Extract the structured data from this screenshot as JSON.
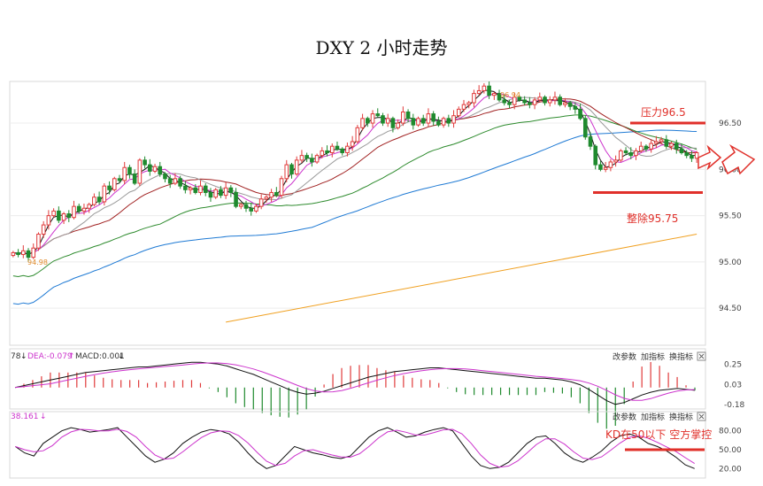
{
  "page": {
    "title": "DXY 2 小时走势"
  },
  "chart_data": [
    {
      "type": "candlestick",
      "price_labels": {
        "low": "94.98",
        "high": "96.94"
      },
      "y_ticks": [
        "96.50",
        "96.00",
        "95.50",
        "95.00",
        "94.50"
      ],
      "ylim": [
        94.1,
        96.95
      ],
      "annotations": {
        "resistance": "压力96.5",
        "support": "整除95.75"
      },
      "levels": {
        "resistance": 96.5,
        "support": 95.75
      },
      "colors": {
        "up": "#e03a3a",
        "down": "#1f8a2e",
        "ma5": "#111111",
        "ma10": "#cc33cc",
        "ma20": "#999999",
        "ma30": "#a02020",
        "ma60": "#2e8b2e",
        "ma120": "#1f7ad4",
        "ma250": "#f0a020"
      },
      "closes": [
        95.1,
        95.08,
        95.12,
        95.05,
        95.15,
        95.3,
        95.4,
        95.5,
        95.55,
        95.45,
        95.52,
        95.48,
        95.6,
        95.55,
        95.58,
        95.62,
        95.7,
        95.65,
        95.82,
        95.78,
        95.9,
        95.88,
        96.02,
        95.95,
        95.85,
        96.1,
        96.05,
        95.98,
        96.03,
        95.95,
        95.9,
        95.85,
        95.9,
        95.82,
        95.78,
        95.8,
        95.75,
        95.82,
        95.75,
        95.7,
        95.78,
        95.72,
        95.8,
        95.75,
        95.6,
        95.62,
        95.58,
        95.55,
        95.6,
        95.68,
        95.7,
        95.75,
        95.72,
        95.9,
        96.05,
        95.95,
        96.1,
        96.15,
        96.12,
        96.08,
        96.15,
        96.2,
        96.18,
        96.25,
        96.22,
        96.18,
        96.25,
        96.3,
        96.45,
        96.55,
        96.5,
        96.6,
        96.58,
        96.5,
        96.55,
        96.45,
        96.5,
        96.62,
        96.55,
        96.48,
        96.55,
        96.5,
        96.6,
        96.52,
        96.48,
        96.55,
        96.5,
        96.58,
        96.65,
        96.7,
        96.72,
        96.82,
        96.85,
        96.9,
        96.8,
        96.82,
        96.75,
        96.72,
        96.7,
        96.78,
        96.75,
        96.72,
        96.7,
        96.75,
        96.78,
        96.72,
        96.75,
        96.78,
        96.7,
        96.72,
        96.68,
        96.65,
        96.55,
        96.35,
        96.25,
        96.05,
        96.0,
        96.02,
        96.08,
        96.1,
        96.2,
        96.18,
        96.15,
        96.2,
        96.25,
        96.22,
        96.28,
        96.3,
        96.32,
        96.25,
        96.28,
        96.22,
        96.18,
        96.15,
        96.12,
        96.18
      ],
      "ma250": {
        "start": 94.35,
        "end": 95.3
      }
    },
    {
      "type": "macd",
      "legend": {
        "dif": "78",
        "dea": "DEA:-0.079",
        "macd": "MACD:0.001"
      },
      "y_ticks": [
        "0.25",
        "0.03",
        "-0.18"
      ],
      "controls": [
        "改参数",
        "加指标",
        "换指标"
      ],
      "dif": [
        0.0,
        0.02,
        0.04,
        0.06,
        0.08,
        0.1,
        0.12,
        0.14,
        0.16,
        0.17,
        0.18,
        0.19,
        0.2,
        0.21,
        0.22,
        0.22,
        0.23,
        0.24,
        0.25,
        0.26,
        0.27,
        0.27,
        0.26,
        0.25,
        0.23,
        0.2,
        0.17,
        0.14,
        0.1,
        0.06,
        0.02,
        -0.02,
        -0.05,
        -0.07,
        -0.06,
        -0.04,
        -0.01,
        0.02,
        0.05,
        0.08,
        0.11,
        0.13,
        0.15,
        0.17,
        0.18,
        0.19,
        0.2,
        0.21,
        0.21,
        0.2,
        0.19,
        0.18,
        0.17,
        0.16,
        0.15,
        0.14,
        0.13,
        0.12,
        0.11,
        0.1,
        0.1,
        0.09,
        0.08,
        0.06,
        0.03,
        -0.02,
        -0.08,
        -0.14,
        -0.18,
        -0.16,
        -0.12,
        -0.08,
        -0.05,
        -0.03,
        -0.02,
        -0.01,
        -0.02,
        -0.03
      ]
    },
    {
      "type": "kd",
      "legend": "38.161",
      "y_ticks": [
        "80.00",
        "50.00",
        "20.00"
      ],
      "controls": [
        "改参数",
        "加指标",
        "换指标"
      ],
      "annotation": "KD在50以下 空方掌控",
      "level": 50,
      "k": [
        55,
        45,
        40,
        60,
        70,
        80,
        85,
        82,
        78,
        80,
        82,
        85,
        70,
        55,
        40,
        30,
        35,
        45,
        60,
        70,
        78,
        82,
        80,
        75,
        62,
        45,
        30,
        20,
        25,
        40,
        55,
        50,
        45,
        42,
        38,
        36,
        40,
        55,
        70,
        80,
        85,
        78,
        70,
        72,
        78,
        82,
        85,
        80,
        60,
        40,
        25,
        20,
        22,
        30,
        45,
        60,
        70,
        72,
        60,
        45,
        35,
        30,
        38,
        48,
        62,
        72,
        75,
        70,
        60,
        55,
        48,
        38,
        26,
        20
      ]
    }
  ]
}
